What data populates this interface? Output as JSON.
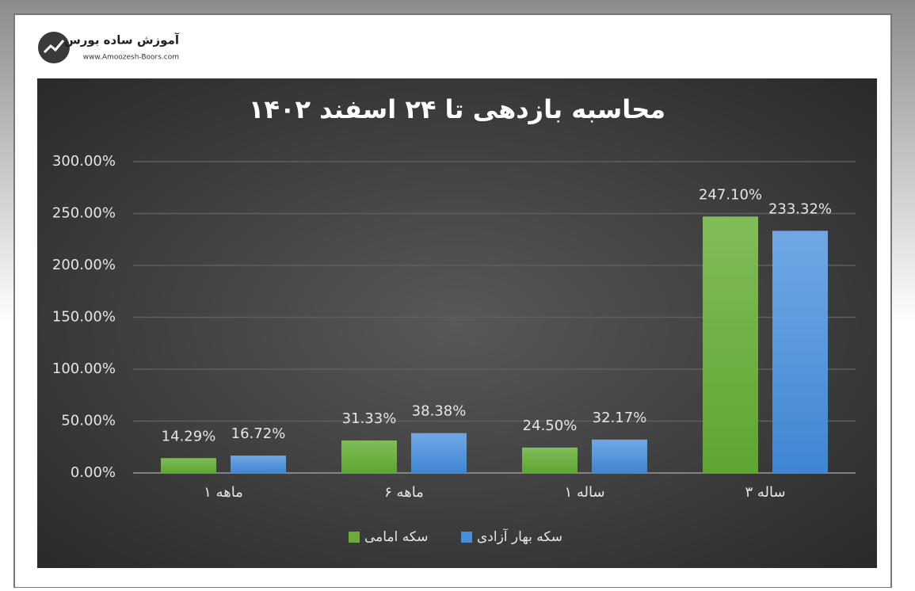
{
  "header": {
    "brand": "آموزش ساده بورس",
    "url": "www.Amoozesh-Boors.com"
  },
  "chart_data": {
    "type": "bar",
    "title": "محاسبه بازدهی تا ۲۴ اسفند ۱۴۰۲",
    "categories": [
      "۱ ماهه",
      "۶ ماهه",
      "۱ ساله",
      "۳ ساله"
    ],
    "series": [
      {
        "name": "سکه امامی",
        "color": "#6aab3c",
        "values": [
          14.29,
          31.33,
          24.5,
          247.1
        ],
        "value_labels": [
          "14.29%",
          "31.33%",
          "24.50%",
          "247.10%"
        ]
      },
      {
        "name": "سکه بهار آزادی",
        "color": "#4a8fd6",
        "values": [
          16.72,
          38.38,
          32.17,
          233.32
        ],
        "value_labels": [
          "16.72%",
          "38.38%",
          "32.17%",
          "233.32%"
        ]
      }
    ],
    "ylim": [
      0,
      300
    ],
    "yticks": [
      {
        "value": 0,
        "label": "0.00%"
      },
      {
        "value": 50,
        "label": "50.00%"
      },
      {
        "value": 100,
        "label": "100.00%"
      },
      {
        "value": 150,
        "label": "150.00%"
      },
      {
        "value": 200,
        "label": "200.00%"
      },
      {
        "value": 250,
        "label": "250.00%"
      },
      {
        "value": 300,
        "label": "300.00%"
      }
    ],
    "grid": true,
    "legend": "bottom"
  }
}
